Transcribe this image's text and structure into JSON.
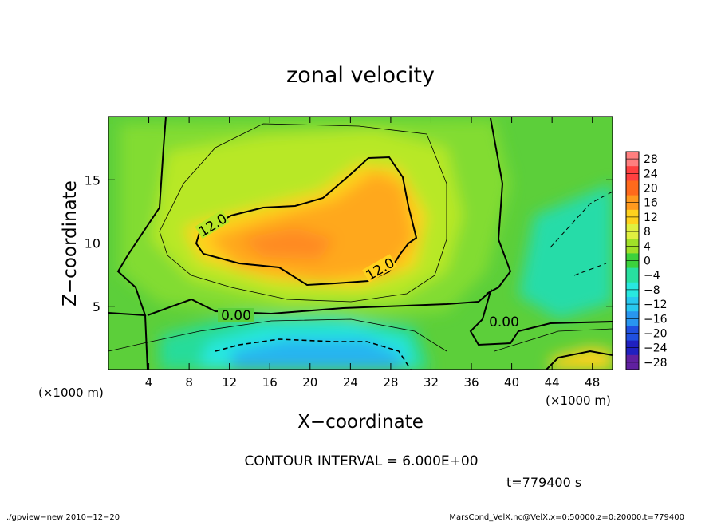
{
  "chart_data": {
    "type": "heatmap",
    "title": "zonal velocity",
    "xlabel": "X−coordinate",
    "ylabel": "Z−coordinate",
    "x_unit": "(×1000 m)",
    "y_unit": "(×1000 m)",
    "xlim": [
      0,
      50
    ],
    "ylim": [
      0,
      20
    ],
    "x_ticks": [
      4,
      8,
      12,
      16,
      20,
      24,
      28,
      32,
      36,
      40,
      44,
      48
    ],
    "y_ticks": [
      5,
      10,
      15
    ],
    "colorbar": {
      "levels": [
        28,
        24,
        20,
        16,
        12,
        8,
        4,
        0,
        -4,
        -8,
        -12,
        -16,
        -20,
        -24,
        -28
      ],
      "labels": [
        "28",
        "24",
        "20",
        "16",
        "12",
        "8",
        "4",
        "0",
        "−4",
        "−8",
        "−12",
        "−16",
        "−20",
        "−24",
        "−28"
      ],
      "colors": [
        "#ff7f7f",
        "#ff4040",
        "#ff6a1c",
        "#ff9a1e",
        "#ffd21e",
        "#e0f040",
        "#a0e028",
        "#3cd23c",
        "#28e0a0",
        "#28e8e0",
        "#28c8f0",
        "#2896f0",
        "#2050e0",
        "#2020c0",
        "#6020a0"
      ]
    },
    "contour_labels": [
      {
        "text": "12.0",
        "x": 10.5,
        "y": 11.5
      },
      {
        "text": "12.0",
        "x": 26.5,
        "y": 7.5
      },
      {
        "text": "0.00",
        "x": 13.0,
        "y": 4.2
      },
      {
        "text": "0.00",
        "x": 39.5,
        "y": 3.8
      }
    ],
    "contour_interval_text": "CONTOUR INTERVAL = 6.000E+00",
    "time_text": "t=779400 s",
    "footer_left": "./gpview−new  2010−12−20",
    "footer_right": "MarsCond_VelX.nc@VelX,x=0:50000,z=0:20000,t=779400"
  }
}
